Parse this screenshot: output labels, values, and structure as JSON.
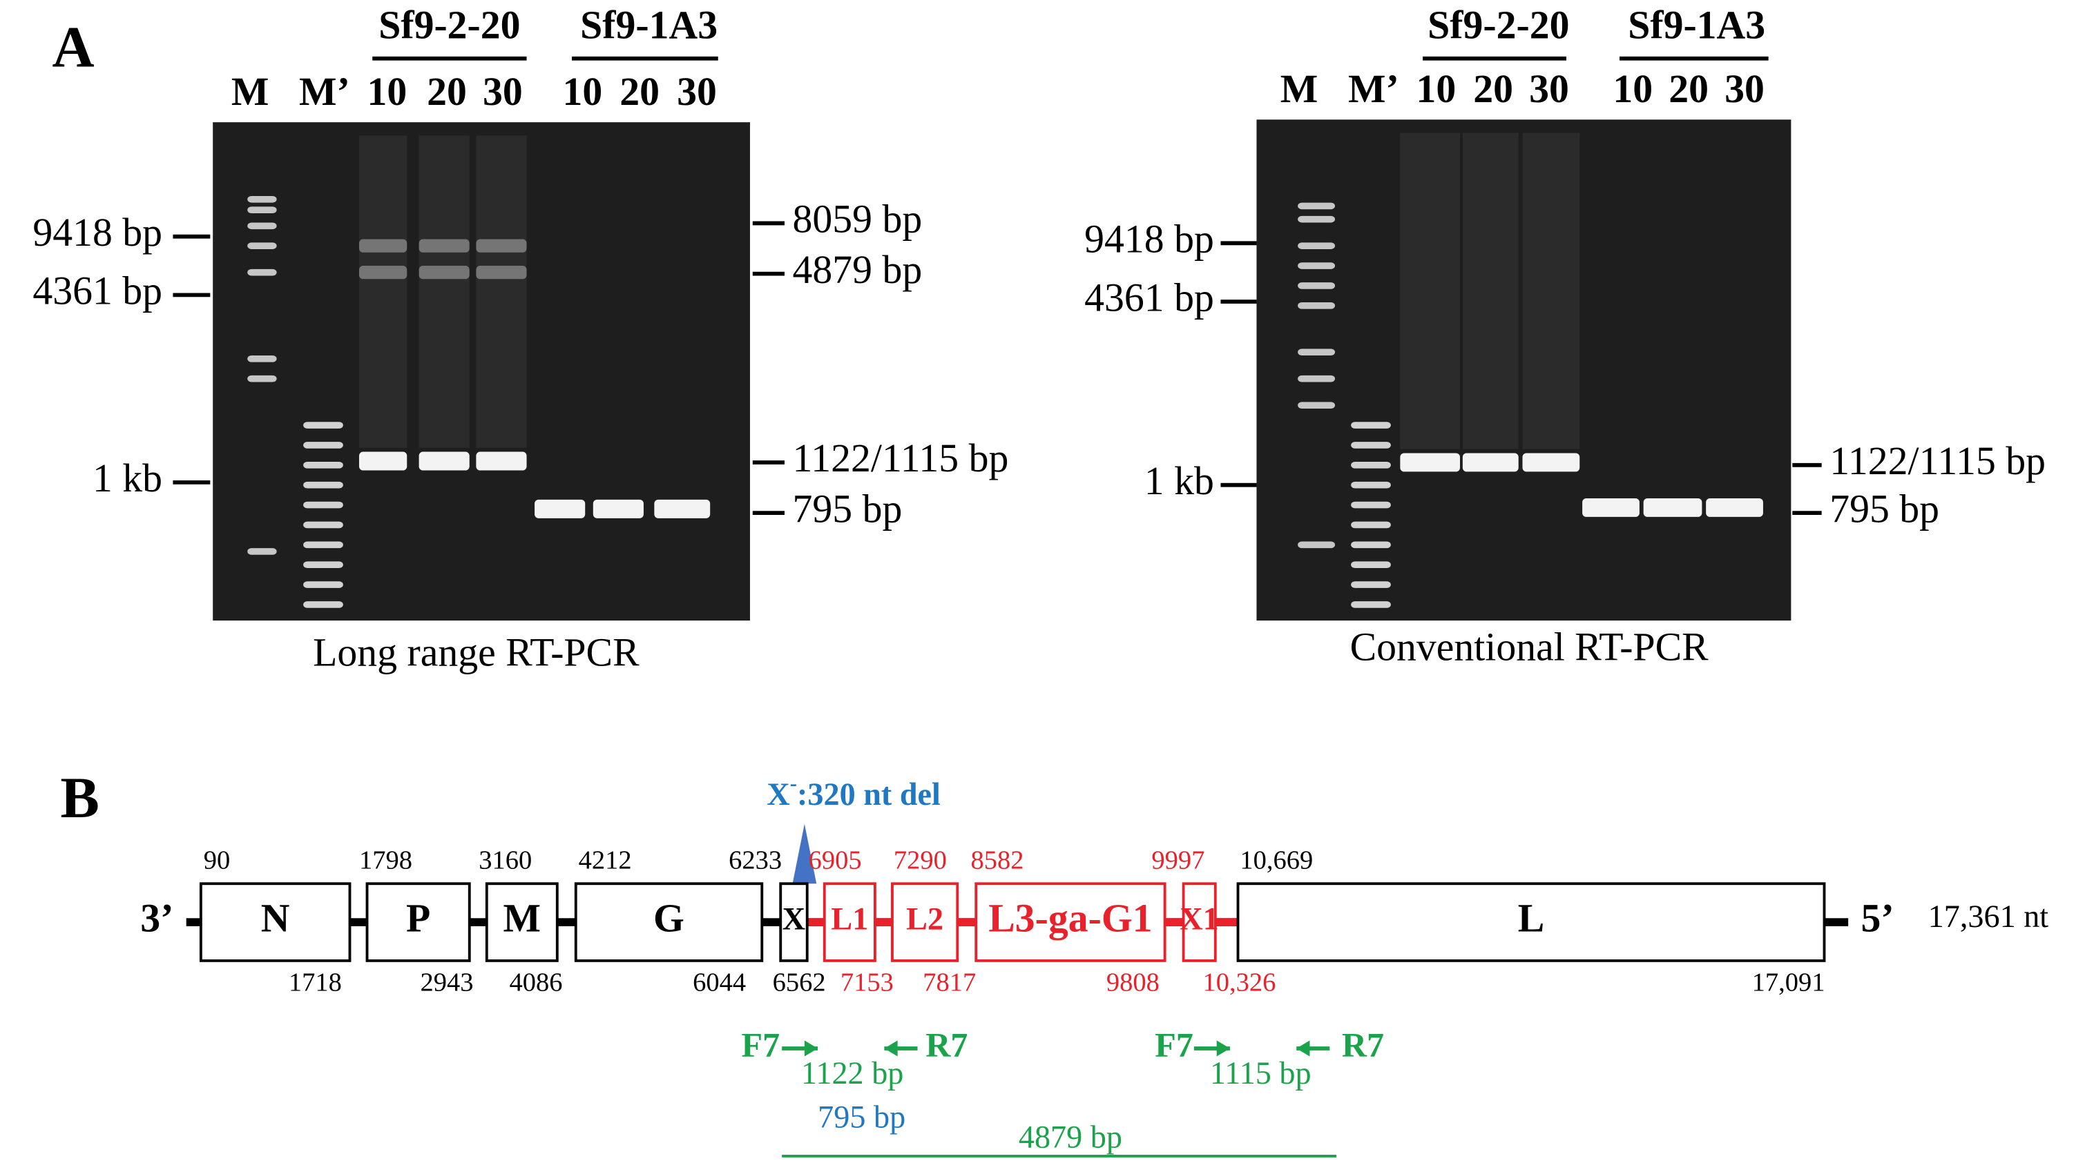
{
  "panel_a": {
    "label": "A",
    "gels": [
      {
        "marker": "M",
        "marker2": "M’",
        "groups": [
          {
            "name": "Sf9-2-20",
            "lanes": [
              "10",
              "20",
              "30"
            ]
          },
          {
            "name": "Sf9-1A3",
            "lanes": [
              "10",
              "20",
              "30"
            ]
          }
        ],
        "left_sizes": [
          "9418 bp",
          "4361 bp",
          "1 kb"
        ],
        "right_sizes": [
          "8059 bp",
          "4879 bp",
          "1122/1115 bp",
          "795 bp"
        ],
        "caption": "Long range RT-PCR"
      },
      {
        "marker": "M",
        "marker2": "M’",
        "groups": [
          {
            "name": "Sf9-2-20",
            "lanes": [
              "10",
              "20",
              "30"
            ]
          },
          {
            "name": "Sf9-1A3",
            "lanes": [
              "10",
              "20",
              "30"
            ]
          }
        ],
        "left_sizes": [
          "9418 bp",
          "4361 bp",
          "1 kb"
        ],
        "right_sizes": [
          "1122/1115 bp",
          "795 bp"
        ],
        "caption": "Conventional RT-PCR"
      }
    ]
  },
  "panel_b": {
    "label": "B",
    "deletion": {
      "gene": "X",
      "sup": "-",
      "text": ":320 nt del"
    },
    "end_3": "3’",
    "end_5": "5’",
    "length": "17,361 nt",
    "genes": [
      {
        "name": "N",
        "start": "90",
        "end": "1718"
      },
      {
        "name": "P",
        "start": "1798",
        "end": "2943"
      },
      {
        "name": "M",
        "start": "3160",
        "end": "4086"
      },
      {
        "name": "G",
        "start": "4212",
        "end": "6044"
      },
      {
        "name": "X",
        "start": "6233",
        "end": "6562"
      },
      {
        "name": "L1",
        "start": "6905",
        "end": "7153"
      },
      {
        "name": "L2",
        "start": "7290",
        "end": "7817"
      },
      {
        "name": "L3-ga-G1",
        "start": "8582",
        "end": "9808"
      },
      {
        "name": "X1",
        "start": "9997",
        "end": "10,326"
      },
      {
        "name": "L",
        "start": "10,669",
        "end": "17,091"
      }
    ],
    "primers": [
      {
        "forward": "F7",
        "reverse": "R7",
        "product": "1122 bp"
      },
      {
        "forward": "F7",
        "reverse": "R7",
        "product": "1115 bp"
      }
    ],
    "products": [
      "795 bp",
      "4879 bp"
    ]
  }
}
